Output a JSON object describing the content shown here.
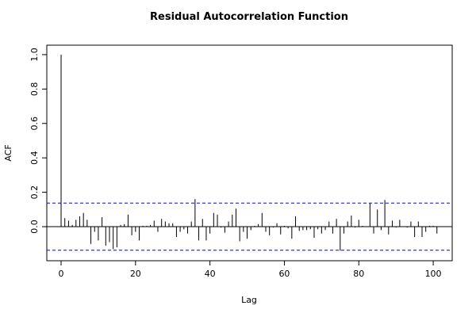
{
  "chart_data": {
    "type": "stem",
    "title": "Residual Autocorrelation Function",
    "x_label": "Lag",
    "y_label": "ACF",
    "x": [
      0,
      1,
      2,
      3,
      4,
      5,
      6,
      7,
      8,
      9,
      10,
      11,
      12,
      13,
      14,
      15,
      16,
      17,
      18,
      19,
      20,
      21,
      22,
      23,
      24,
      25,
      26,
      27,
      28,
      29,
      30,
      31,
      32,
      33,
      34,
      35,
      36,
      37,
      38,
      39,
      40,
      41,
      42,
      43,
      44,
      45,
      46,
      47,
      48,
      49,
      50,
      51,
      52,
      53,
      54,
      55,
      56,
      57,
      58,
      59,
      60,
      61,
      62,
      63,
      64,
      65,
      66,
      67,
      68,
      69,
      70,
      71,
      72,
      73,
      74,
      75,
      76,
      77,
      78,
      79,
      80,
      81,
      82,
      83,
      84,
      85,
      86,
      87,
      88,
      89,
      90,
      91,
      92,
      93,
      94,
      95,
      96,
      97,
      98,
      99,
      100,
      101
    ],
    "values": [
      1.0,
      0.05,
      0.035,
      0.01,
      0.04,
      0.06,
      0.08,
      0.04,
      -0.1,
      -0.03,
      -0.08,
      0.055,
      -0.11,
      -0.09,
      -0.13,
      -0.12,
      0.01,
      0.015,
      0.07,
      -0.05,
      -0.03,
      -0.08,
      0.005,
      0.005,
      0.01,
      0.035,
      -0.03,
      0.045,
      0.03,
      0.02,
      0.02,
      -0.06,
      -0.03,
      -0.015,
      -0.04,
      0.03,
      0.16,
      -0.08,
      0.045,
      -0.08,
      -0.04,
      0.08,
      0.07,
      -0.005,
      -0.035,
      0.03,
      0.07,
      0.105,
      -0.085,
      -0.03,
      -0.07,
      -0.02,
      0.005,
      0.015,
      0.08,
      -0.03,
      -0.05,
      -0.005,
      0.02,
      -0.045,
      0.005,
      -0.01,
      -0.07,
      0.06,
      -0.025,
      -0.02,
      -0.02,
      -0.015,
      -0.065,
      -0.015,
      -0.04,
      -0.02,
      0.03,
      -0.04,
      0.045,
      -0.14,
      -0.04,
      0.03,
      0.065,
      -0.005,
      0.04,
      0.005,
      0.0,
      0.135,
      -0.04,
      0.1,
      -0.02,
      0.155,
      -0.045,
      0.035,
      -0.005,
      0.04,
      0.0,
      -0.005,
      0.03,
      -0.06,
      0.03,
      -0.06,
      -0.03,
      0.005,
      0.005,
      -0.04
    ],
    "color": "#000000",
    "ci_lines": [
      0.137,
      -0.137
    ],
    "ci_color": "#0000ff",
    "xlim": [
      -3.84,
      105.1
    ],
    "ylim": [
      -0.198,
      1.055
    ],
    "xticks": [
      0,
      20,
      40,
      60,
      80,
      100
    ],
    "yticks": [
      {
        "value": 0,
        "label": "0.0"
      },
      0.2,
      0.4,
      0.6,
      0.8,
      {
        "value": 1,
        "label": "1.0"
      }
    ]
  }
}
